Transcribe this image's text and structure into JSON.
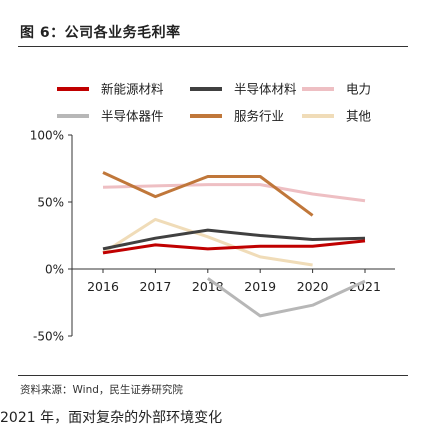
{
  "figure": {
    "title": "图 6：公司各业务毛利率",
    "source": "资料来源：Wind，民生证券研究院",
    "trailing_text": "2021 年，面对复杂的外部环境变化"
  },
  "chart_data": {
    "type": "line",
    "x": [
      "2016",
      "2017",
      "2018",
      "2019",
      "2020",
      "2021"
    ],
    "ylim": [
      -50,
      100
    ],
    "yticks": [
      -50,
      0,
      50,
      100
    ],
    "ytick_labels": [
      "-50%",
      "0%",
      "50%",
      "100%"
    ],
    "grid": false,
    "legend_placement": "top",
    "series": [
      {
        "name": "新能源材料",
        "color": "#c00000",
        "values": [
          12,
          18,
          15,
          17,
          17,
          21
        ]
      },
      {
        "name": "半导体材料",
        "color": "#404040",
        "values": [
          15,
          23,
          29,
          25,
          22,
          23
        ]
      },
      {
        "name": "电力",
        "color": "#eebfc3",
        "values": [
          61,
          62,
          63,
          63,
          56,
          51
        ]
      },
      {
        "name": "半导体器件",
        "color": "#b7b7b7",
        "values": [
          null,
          null,
          -7,
          -35,
          -27,
          -9
        ]
      },
      {
        "name": "服务行业",
        "color": "#c0773a",
        "values": [
          72,
          54,
          69,
          69,
          40,
          null
        ]
      },
      {
        "name": "其他",
        "color": "#f0dcb8",
        "values": [
          12,
          37,
          24,
          9,
          3,
          null
        ]
      }
    ]
  }
}
